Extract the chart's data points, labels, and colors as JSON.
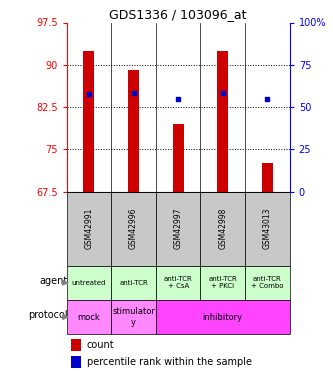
{
  "title": "GDS1336 / 103096_at",
  "samples": [
    "GSM42991",
    "GSM42996",
    "GSM42997",
    "GSM42998",
    "GSM43013"
  ],
  "count_values": [
    92.5,
    89.0,
    79.5,
    92.5,
    72.5
  ],
  "percentile_values": [
    84.8,
    85.0,
    84.0,
    85.0,
    84.0
  ],
  "ylim_left": [
    67.5,
    97.5
  ],
  "ylim_right": [
    0,
    100
  ],
  "yticks_left": [
    67.5,
    75.0,
    82.5,
    90.0,
    97.5
  ],
  "yticks_right": [
    0,
    25,
    50,
    75,
    100
  ],
  "ytick_labels_left": [
    "67.5",
    "75",
    "82.5",
    "90",
    "97.5"
  ],
  "ytick_labels_right": [
    "0",
    "25",
    "50",
    "75",
    "100%"
  ],
  "bar_color": "#cc0000",
  "dot_color": "#0000cc",
  "agent_labels": [
    "untreated",
    "anti-TCR",
    "anti-TCR\n+ CsA",
    "anti-TCR\n+ PKCi",
    "anti-TCR\n+ Combo"
  ],
  "agent_bg": "#ccffcc",
  "sample_bg": "#c8c8c8",
  "bar_bottom": 67.5,
  "bar_width": 0.25,
  "legend_count_color": "#cc0000",
  "legend_pct_color": "#0000cc"
}
